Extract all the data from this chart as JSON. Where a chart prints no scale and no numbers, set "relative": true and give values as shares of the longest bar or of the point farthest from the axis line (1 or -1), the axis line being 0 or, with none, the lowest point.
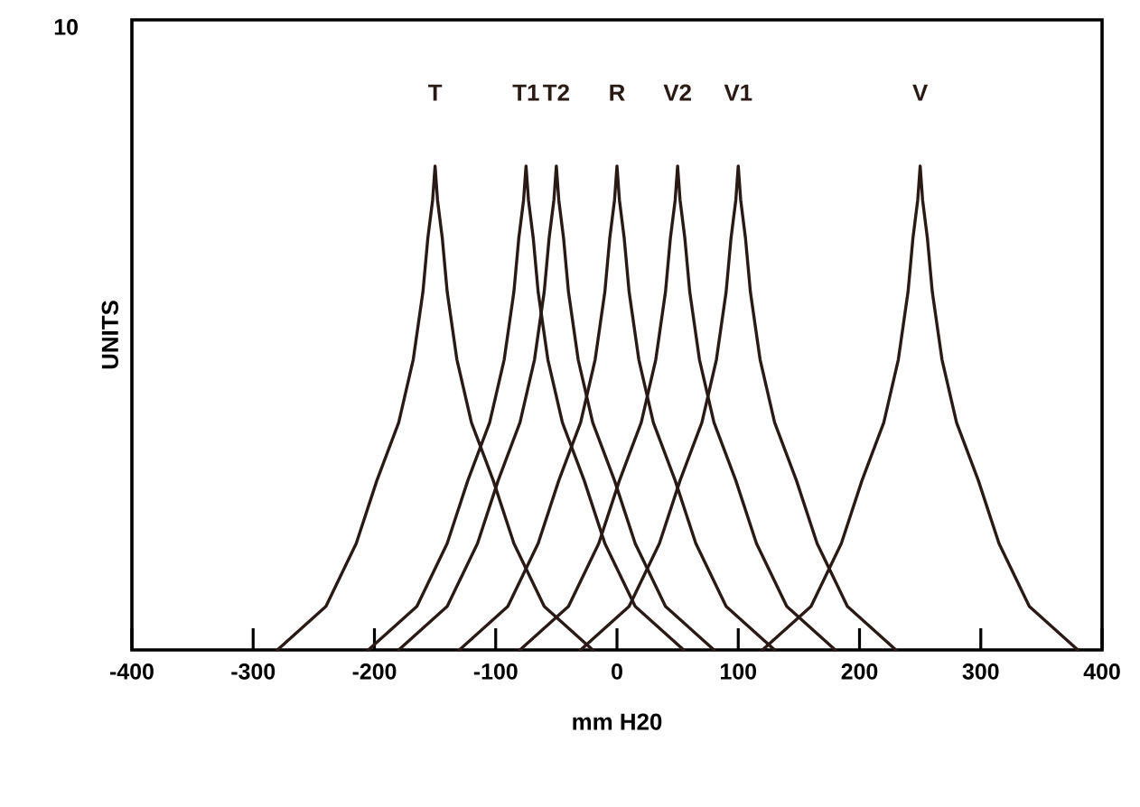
{
  "chart_data": {
    "type": "line",
    "relative": true,
    "xlabel": "mm H20",
    "ylabel": "UNITS",
    "annotations": [
      "10"
    ],
    "xlim": [
      -400,
      400
    ],
    "xticks": [
      -400,
      -300,
      -200,
      -100,
      0,
      100,
      200,
      300,
      400
    ],
    "grid": false,
    "marker": "none",
    "line_style": "solid",
    "series": [
      {
        "name": "T",
        "color": "#2a1a16",
        "x": [
          -280,
          -240,
          -215,
          -198,
          -180,
          -168,
          -160,
          -156,
          -152,
          -150,
          -148,
          -144,
          -140,
          -132,
          -120,
          -102,
          -85,
          -60,
          -20
        ],
        "values": [
          0,
          0.09,
          0.22,
          0.35,
          0.47,
          0.6,
          0.74,
          0.85,
          0.93,
          1,
          0.93,
          0.85,
          0.74,
          0.6,
          0.47,
          0.35,
          0.22,
          0.09,
          0
        ]
      },
      {
        "name": "T1",
        "color": "#2a1a16",
        "x": [
          -205,
          -165,
          -140,
          -123,
          -105,
          -93,
          -85,
          -81,
          -77,
          -75,
          -73,
          -69,
          -65,
          -57,
          -45,
          -27,
          -10,
          15,
          55
        ],
        "values": [
          0,
          0.09,
          0.22,
          0.35,
          0.47,
          0.6,
          0.74,
          0.85,
          0.93,
          1,
          0.93,
          0.85,
          0.74,
          0.6,
          0.47,
          0.35,
          0.22,
          0.09,
          0
        ]
      },
      {
        "name": "T2",
        "color": "#2a1a16",
        "x": [
          -180,
          -140,
          -115,
          -98,
          -80,
          -68,
          -60,
          -56,
          -52,
          -50,
          -48,
          -44,
          -40,
          -32,
          -20,
          -2,
          15,
          40,
          80
        ],
        "values": [
          0,
          0.09,
          0.22,
          0.35,
          0.47,
          0.6,
          0.74,
          0.85,
          0.93,
          1,
          0.93,
          0.85,
          0.74,
          0.6,
          0.47,
          0.35,
          0.22,
          0.09,
          0
        ]
      },
      {
        "name": "R",
        "color": "#2a1a16",
        "x": [
          -130,
          -90,
          -65,
          -48,
          -30,
          -18,
          -10,
          -6,
          -2,
          0,
          2,
          6,
          10,
          18,
          30,
          48,
          65,
          90,
          130
        ],
        "values": [
          0,
          0.09,
          0.22,
          0.35,
          0.47,
          0.6,
          0.74,
          0.85,
          0.93,
          1,
          0.93,
          0.85,
          0.74,
          0.6,
          0.47,
          0.35,
          0.22,
          0.09,
          0
        ]
      },
      {
        "name": "V2",
        "color": "#2a1a16",
        "x": [
          -80,
          -40,
          -15,
          2,
          20,
          32,
          40,
          44,
          48,
          50,
          52,
          56,
          60,
          68,
          80,
          98,
          115,
          140,
          180
        ],
        "values": [
          0,
          0.09,
          0.22,
          0.35,
          0.47,
          0.6,
          0.74,
          0.85,
          0.93,
          1,
          0.93,
          0.85,
          0.74,
          0.6,
          0.47,
          0.35,
          0.22,
          0.09,
          0
        ]
      },
      {
        "name": "V1",
        "color": "#2a1a16",
        "x": [
          -30,
          10,
          35,
          52,
          70,
          82,
          90,
          94,
          98,
          100,
          102,
          106,
          110,
          118,
          130,
          148,
          165,
          190,
          230
        ],
        "values": [
          0,
          0.09,
          0.22,
          0.35,
          0.47,
          0.6,
          0.74,
          0.85,
          0.93,
          1,
          0.93,
          0.85,
          0.74,
          0.6,
          0.47,
          0.35,
          0.22,
          0.09,
          0
        ]
      },
      {
        "name": "V",
        "color": "#2a1a16",
        "x": [
          120,
          160,
          185,
          202,
          220,
          232,
          240,
          244,
          248,
          250,
          252,
          256,
          260,
          268,
          280,
          298,
          315,
          340,
          380
        ],
        "values": [
          0,
          0.09,
          0.22,
          0.35,
          0.47,
          0.6,
          0.74,
          0.85,
          0.93,
          1,
          0.93,
          0.85,
          0.74,
          0.6,
          0.47,
          0.35,
          0.22,
          0.09,
          0
        ]
      }
    ]
  }
}
